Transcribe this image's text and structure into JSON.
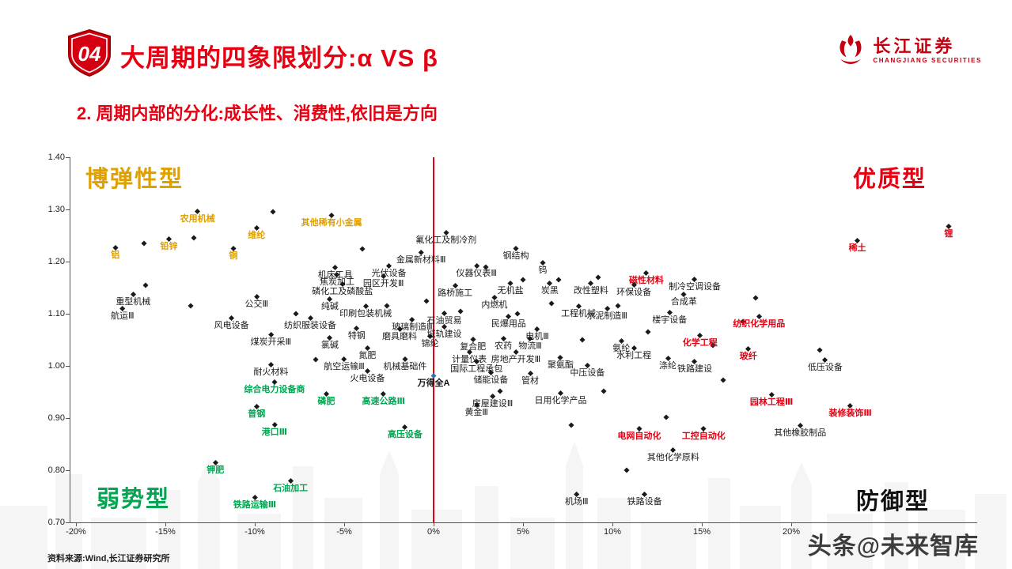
{
  "header": {
    "badge_number": "04",
    "title": "大周期的四象限划分:α VS β",
    "subtitle": "2. 周期内部的分化:成长性、消费性,依旧是方向"
  },
  "logo": {
    "name": "长江证券",
    "subtitle": "CHANGJIANG SECURITIES"
  },
  "footer": {
    "source": "资料来源:Wind,长江证券研究所",
    "watermark": "头条@未来智库"
  },
  "colors": {
    "accent_red": "#e60012",
    "quadrant_yellow": "#dfa000",
    "quadrant_green": "#00a651",
    "marker_black": "#1a1a1a",
    "benchmark_blue": "#2e75b6"
  },
  "chart_data": {
    "type": "scatter",
    "title": "",
    "xlabel": "",
    "ylabel": "",
    "x_axis": {
      "min": -20,
      "max": 30,
      "values": [
        -20,
        -15,
        -10,
        -5,
        0,
        5,
        10,
        15,
        20
      ],
      "labels": [
        "-20%",
        "-15%",
        "-10%",
        "-5%",
        "0%",
        "5%",
        "10%",
        "15%",
        "20%"
      ]
    },
    "y_axis": {
      "min": 0.7,
      "max": 1.4,
      "values": [
        1.4,
        1.3,
        1.2,
        1.1,
        1.0,
        0.9,
        0.8,
        0.7
      ],
      "labels": [
        "1.40",
        "1.30",
        "1.20",
        "1.10",
        "1.00",
        "0.90",
        "0.80",
        "0.70"
      ]
    },
    "zero_line_x": 0,
    "grid": false,
    "legend": "none",
    "quadrants": [
      {
        "label": "博弹性型",
        "position": "top-left",
        "color": "#dfa000"
      },
      {
        "label": "优质型",
        "position": "top-right",
        "color": "#e60012"
      },
      {
        "label": "弱势型",
        "position": "bottom-left",
        "color": "#00a651"
      },
      {
        "label": "防御型",
        "position": "bottom-right",
        "color": "#111111"
      }
    ],
    "series": [
      {
        "name": "博弹性型(黄)",
        "label_color": "#dfa000",
        "marker_color": "#1a1a1a",
        "bold": true,
        "points": [
          {
            "label": "铝",
            "x": -17.8,
            "y": 1.215
          },
          {
            "label": "铅锌",
            "x": -14.8,
            "y": 1.232
          },
          {
            "label": "铜",
            "x": -11.2,
            "y": 1.214
          },
          {
            "label": "农用机械",
            "x": -13.2,
            "y": 1.285
          },
          {
            "label": "维纶",
            "x": -9.9,
            "y": 1.253
          },
          {
            "label": "其他稀有小金属",
            "x": -5.7,
            "y": 1.278
          }
        ]
      },
      {
        "name": "优质型(红)",
        "label_color": "#e60012",
        "marker_color": "#1a1a1a",
        "bold": true,
        "points": [
          {
            "label": "锂",
            "x": 28.8,
            "y": 1.256
          },
          {
            "label": "稀土",
            "x": 23.7,
            "y": 1.229
          },
          {
            "label": "磁性材料",
            "x": 11.9,
            "y": 1.167
          },
          {
            "label": "纺织化学用品",
            "x": 18.2,
            "y": 1.083
          },
          {
            "label": "化学工程",
            "x": 14.9,
            "y": 1.047
          },
          {
            "label": "玻纤",
            "x": 17.6,
            "y": 1.021
          },
          {
            "label": "园林工程Ⅲ",
            "x": 18.9,
            "y": 0.933
          },
          {
            "label": "装修装饰Ⅲ",
            "x": 23.3,
            "y": 0.912
          },
          {
            "label": "电网自动化",
            "x": 11.5,
            "y": 0.868
          },
          {
            "label": "工控自动化",
            "x": 15.1,
            "y": 0.868
          }
        ]
      },
      {
        "name": "弱势型(绿)",
        "label_color": "#00a651",
        "marker_color": "#1a1a1a",
        "bold": true,
        "points": [
          {
            "label": "综合电力设备商",
            "x": -8.9,
            "y": 0.958
          },
          {
            "label": "磷肥",
            "x": -6.0,
            "y": 0.935
          },
          {
            "label": "高速公路Ⅲ",
            "x": -2.8,
            "y": 0.935
          },
          {
            "label": "普钢",
            "x": -9.9,
            "y": 0.911
          },
          {
            "label": "港口Ⅲ",
            "x": -8.9,
            "y": 0.876
          },
          {
            "label": "高压设备",
            "x": -1.6,
            "y": 0.871
          },
          {
            "label": "钾肥",
            "x": -12.2,
            "y": 0.803
          },
          {
            "label": "石油加工",
            "x": -8.0,
            "y": 0.768
          },
          {
            "label": "铁路运输Ⅲ",
            "x": -10.0,
            "y": 0.737
          }
        ]
      },
      {
        "name": "中性(黑)",
        "label_color": "#1a1a1a",
        "marker_color": "#1a1a1a",
        "bold": false,
        "points": [
          {
            "label": "氟化工及制冷剂",
            "x": 0.7,
            "y": 1.244
          },
          {
            "label": "金属新材料Ⅲ",
            "x": -0.7,
            "y": 1.206
          },
          {
            "label": "钢结构",
            "x": 4.6,
            "y": 1.214
          },
          {
            "label": "机床工具",
            "x": -5.5,
            "y": 1.177
          },
          {
            "label": "光伏设备",
            "x": -2.5,
            "y": 1.181
          },
          {
            "label": "仪器仪表Ⅲ",
            "x": 2.4,
            "y": 1.181
          },
          {
            "label": "钨",
            "x": 6.1,
            "y": 1.186
          },
          {
            "label": "焦炭加工",
            "x": -5.4,
            "y": 1.163
          },
          {
            "label": "园区开发Ⅲ",
            "x": -2.8,
            "y": 1.161
          },
          {
            "label": "磷化工及磷酸盐",
            "x": -5.1,
            "y": 1.145
          },
          {
            "label": "路桥施工",
            "x": 1.2,
            "y": 1.142
          },
          {
            "label": "无机盐",
            "x": 4.3,
            "y": 1.147
          },
          {
            "label": "炭黑",
            "x": 6.5,
            "y": 1.147
          },
          {
            "label": "改性塑料",
            "x": 8.8,
            "y": 1.147
          },
          {
            "label": "环保设备",
            "x": 11.2,
            "y": 1.144
          },
          {
            "label": "制冷空调设备",
            "x": 14.6,
            "y": 1.155
          },
          {
            "label": "重型机械",
            "x": -16.8,
            "y": 1.126
          },
          {
            "label": "公交Ⅲ",
            "x": -9.9,
            "y": 1.121
          },
          {
            "label": "纯碱",
            "x": -5.8,
            "y": 1.117
          },
          {
            "label": "内燃机",
            "x": 3.4,
            "y": 1.12
          },
          {
            "label": "工程机械",
            "x": 8.1,
            "y": 1.103
          },
          {
            "label": "水泥制造Ⅲ",
            "x": 9.7,
            "y": 1.099
          },
          {
            "label": "楼宇设备",
            "x": 13.2,
            "y": 1.091
          },
          {
            "label": "合成革",
            "x": 14.0,
            "y": 1.126
          },
          {
            "label": "航运Ⅲ",
            "x": -17.4,
            "y": 1.099
          },
          {
            "label": "印刷包装机械",
            "x": -3.8,
            "y": 1.103
          },
          {
            "label": "石油贸易",
            "x": 0.6,
            "y": 1.089
          },
          {
            "label": "风电设备",
            "x": -11.3,
            "y": 1.08
          },
          {
            "label": "纺织服装设备",
            "x": -6.9,
            "y": 1.08
          },
          {
            "label": "玻璃制造Ⅲ",
            "x": -1.2,
            "y": 1.078
          },
          {
            "label": "民爆用品",
            "x": 4.2,
            "y": 1.083
          },
          {
            "label": "城轨建设",
            "x": 0.6,
            "y": 1.064
          },
          {
            "label": "煤炭开采Ⅲ",
            "x": -9.1,
            "y": 1.049
          },
          {
            "label": "特钢",
            "x": -4.3,
            "y": 1.061
          },
          {
            "label": "磨具磨料",
            "x": -1.9,
            "y": 1.059
          },
          {
            "label": "锦纶",
            "x": -0.2,
            "y": 1.046
          },
          {
            "label": "氯碱",
            "x": -5.8,
            "y": 1.043
          },
          {
            "label": "电机Ⅲ",
            "x": 5.8,
            "y": 1.059
          },
          {
            "label": "农药",
            "x": 3.9,
            "y": 1.041
          },
          {
            "label": "物流Ⅲ",
            "x": 5.4,
            "y": 1.041
          },
          {
            "label": "氨纶",
            "x": 10.5,
            "y": 1.036
          },
          {
            "label": "水利工程",
            "x": 11.2,
            "y": 1.023
          },
          {
            "label": "氮肥",
            "x": -3.7,
            "y": 1.023
          },
          {
            "label": "复合肥",
            "x": 2.2,
            "y": 1.039
          },
          {
            "label": "耐火材料",
            "x": -9.1,
            "y": 0.991
          },
          {
            "label": "航空运输Ⅲ",
            "x": -5.0,
            "y": 1.002
          },
          {
            "label": "机械基础件",
            "x": -1.6,
            "y": 1.002
          },
          {
            "label": "计量仪表",
            "x": 2.0,
            "y": 1.015
          },
          {
            "label": "房地产开发Ⅲ",
            "x": 4.6,
            "y": 1.015
          },
          {
            "label": "聚氨酯",
            "x": 7.1,
            "y": 1.005
          },
          {
            "label": "中压设备",
            "x": 8.6,
            "y": 0.99
          },
          {
            "label": "涤纶",
            "x": 13.1,
            "y": 1.003
          },
          {
            "label": "铁路建设",
            "x": 14.6,
            "y": 0.997
          },
          {
            "label": "低压设备",
            "x": 21.9,
            "y": 1.0
          },
          {
            "label": "火电设备",
            "x": -3.7,
            "y": 0.979
          },
          {
            "label": "国际工程承包",
            "x": 2.4,
            "y": 0.997
          },
          {
            "label": "储能设备",
            "x": 3.2,
            "y": 0.976
          },
          {
            "label": "管材",
            "x": 5.4,
            "y": 0.974
          },
          {
            "label": "房屋建设Ⅲ",
            "x": 3.3,
            "y": 0.931
          },
          {
            "label": "日用化学产品",
            "x": 7.1,
            "y": 0.936
          },
          {
            "label": "黄金Ⅲ",
            "x": 2.4,
            "y": 0.913
          },
          {
            "label": "其他橡胶制品",
            "x": 20.5,
            "y": 0.874
          },
          {
            "label": "其他化学原料",
            "x": 13.4,
            "y": 0.827
          },
          {
            "label": "机场Ⅲ",
            "x": 8.0,
            "y": 0.743
          },
          {
            "label": "铁路设备",
            "x": 11.8,
            "y": 0.743
          }
        ]
      },
      {
        "name": "市场基准",
        "label_color": "#111111",
        "marker_color": "#2e75b6",
        "bold": true,
        "points": [
          {
            "label": "万得全A",
            "x": 0.0,
            "y": 0.969
          }
        ]
      }
    ],
    "unlabeled_points": [
      [
        -16.2,
        1.235
      ],
      [
        -13.4,
        1.245
      ],
      [
        -9.0,
        1.295
      ],
      [
        -4.0,
        1.225
      ],
      [
        2.9,
        1.19
      ],
      [
        5.0,
        1.165
      ],
      [
        7.0,
        1.165
      ],
      [
        9.2,
        1.17
      ],
      [
        6.6,
        1.12
      ],
      [
        10.3,
        1.115
      ],
      [
        12.0,
        1.065
      ],
      [
        8.3,
        1.05
      ],
      [
        15.6,
        1.04
      ],
      [
        17.3,
        1.085
      ],
      [
        21.6,
        1.03
      ],
      [
        -0.4,
        1.125
      ],
      [
        4.7,
        1.1
      ],
      [
        -13.6,
        1.115
      ],
      [
        -16.1,
        1.155
      ],
      [
        -7.7,
        1.1
      ],
      [
        -6.6,
        1.012
      ],
      [
        3.7,
        0.952
      ],
      [
        9.5,
        0.952
      ],
      [
        13.0,
        0.902
      ],
      [
        16.2,
        0.972
      ],
      [
        -2.6,
        1.115
      ],
      [
        1.5,
        1.105
      ],
      [
        7.7,
        0.887
      ],
      [
        10.8,
        0.8
      ],
      [
        18.0,
        1.13
      ]
    ]
  }
}
